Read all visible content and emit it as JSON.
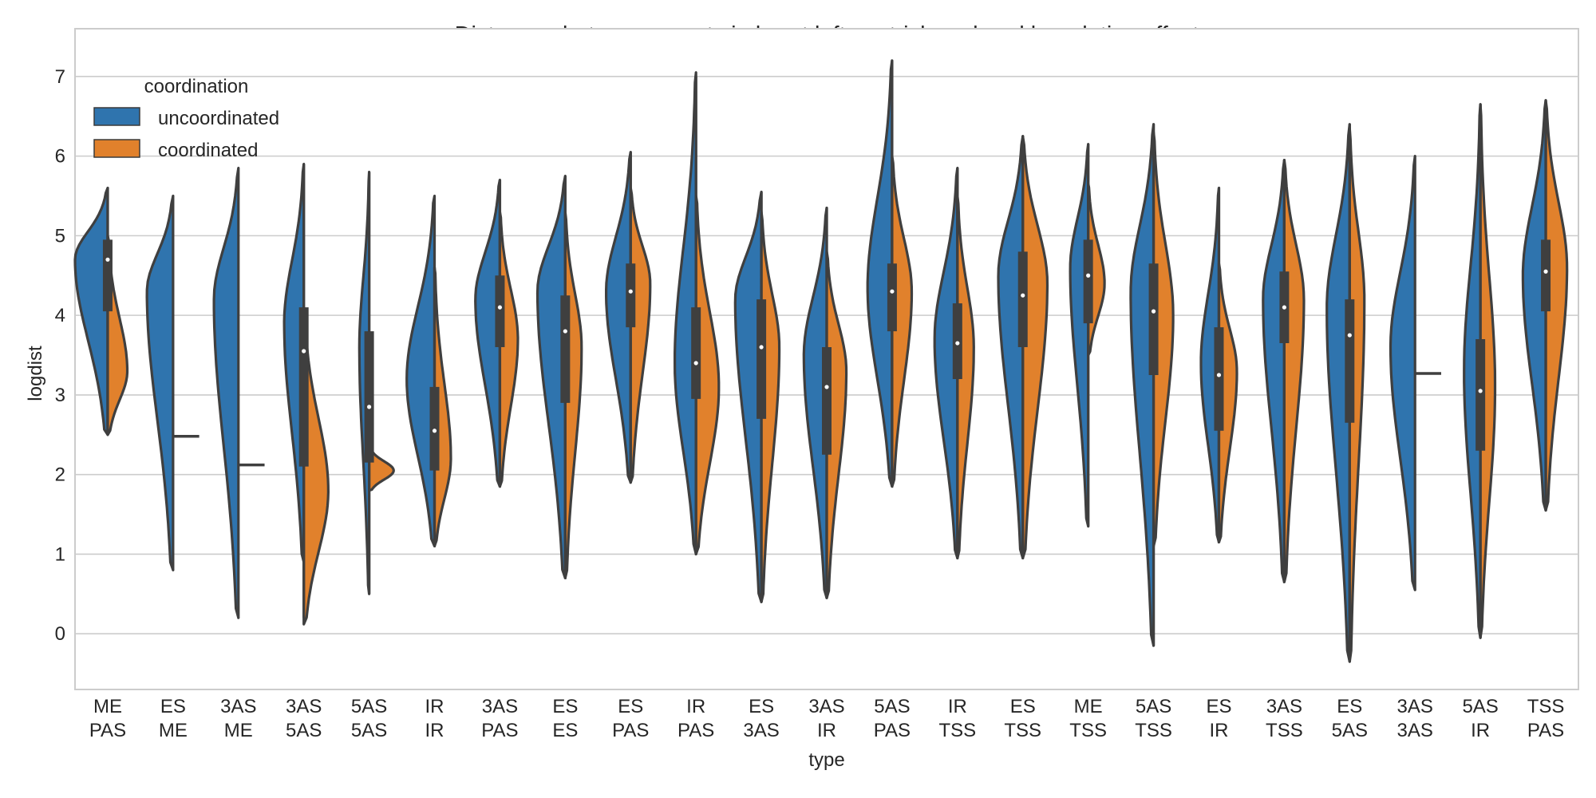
{
  "chart_data": {
    "type": "violin",
    "title": "Distances between events in heart left ventricle ordered by relative effect",
    "xlabel": "type",
    "ylabel": "logdist",
    "ylim": [
      -0.7,
      7.6
    ],
    "yticks": [
      "0",
      "1",
      "2",
      "3",
      "4",
      "5",
      "6",
      "7"
    ],
    "grid": true,
    "legend": {
      "title": "coordination",
      "placement": "upper-left",
      "entries": [
        {
          "label": "uncoordinated",
          "color": "#2f74ae"
        },
        {
          "label": "coordinated",
          "color": "#e1812c"
        }
      ]
    },
    "series_colors": {
      "uncoordinated": "#2f74ae",
      "coordinated": "#e1812c"
    },
    "categories": [
      {
        "line1": "ME",
        "line2": "PAS",
        "unc": {
          "min": 2.5,
          "max": 5.6,
          "peak": 4.7,
          "w": 1.0
        },
        "coo": {
          "min": 2.5,
          "max": 5.0,
          "peak": 3.3,
          "w": 0.6
        },
        "box": {
          "q1": 4.05,
          "median": 4.7,
          "q3": 4.95,
          "lo": 2.5,
          "hi": 5.6
        }
      },
      {
        "line1": "ES",
        "line2": "ME",
        "unc": {
          "min": 0.8,
          "max": 5.5,
          "peak": 4.3,
          "w": 0.8
        },
        "coo": {
          "point": 2.48
        },
        "box": null
      },
      {
        "line1": "3AS",
        "line2": "ME",
        "unc": {
          "min": 0.2,
          "max": 5.85,
          "peak": 4.2,
          "w": 0.75
        },
        "coo": {
          "point": 2.12
        },
        "box": null
      },
      {
        "line1": "3AS",
        "line2": "5AS",
        "unc": {
          "min": 0.9,
          "max": 5.9,
          "peak": 3.9,
          "w": 0.6
        },
        "coo": {
          "min": 0.12,
          "max": 4.1,
          "peak": 1.8,
          "w": 0.75
        },
        "box": {
          "q1": 2.1,
          "median": 3.55,
          "q3": 4.1,
          "lo": 0.2,
          "hi": 5.9
        }
      },
      {
        "line1": "5AS",
        "line2": "5AS",
        "unc": {
          "min": 0.5,
          "max": 5.8,
          "peak": 3.6,
          "w": 0.3
        },
        "coo": {
          "min": 1.8,
          "max": 2.35,
          "peak": 2.05,
          "w": 0.75
        },
        "box": {
          "q1": 2.15,
          "median": 2.85,
          "q3": 3.8,
          "lo": 0.5,
          "hi": 5.8
        }
      },
      {
        "line1": "IR",
        "line2": "IR",
        "unc": {
          "min": 1.1,
          "max": 5.5,
          "peak": 3.2,
          "w": 0.85
        },
        "coo": {
          "min": 1.1,
          "max": 4.6,
          "peak": 2.2,
          "w": 0.5
        },
        "box": {
          "q1": 2.05,
          "median": 2.55,
          "q3": 3.1,
          "lo": 1.1,
          "hi": 4.6
        }
      },
      {
        "line1": "3AS",
        "line2": "PAS",
        "unc": {
          "min": 1.85,
          "max": 5.7,
          "peak": 4.2,
          "w": 0.75
        },
        "coo": {
          "min": 1.85,
          "max": 5.3,
          "peak": 3.7,
          "w": 0.55
        },
        "box": {
          "q1": 3.6,
          "median": 4.1,
          "q3": 4.5,
          "lo": 1.85,
          "hi": 5.7
        }
      },
      {
        "line1": "ES",
        "line2": "ES",
        "unc": {
          "min": 0.7,
          "max": 5.75,
          "peak": 4.3,
          "w": 0.85
        },
        "coo": {
          "min": 0.7,
          "max": 5.3,
          "peak": 3.6,
          "w": 0.5
        },
        "box": {
          "q1": 2.9,
          "median": 3.8,
          "q3": 4.25,
          "lo": 0.7,
          "hi": 5.75
        }
      },
      {
        "line1": "ES",
        "line2": "PAS",
        "unc": {
          "min": 1.9,
          "max": 6.05,
          "peak": 4.3,
          "w": 0.75
        },
        "coo": {
          "min": 1.9,
          "max": 5.6,
          "peak": 4.4,
          "w": 0.6
        },
        "box": {
          "q1": 3.85,
          "median": 4.3,
          "q3": 4.65,
          "lo": 1.9,
          "hi": 6.05
        }
      },
      {
        "line1": "IR",
        "line2": "PAS",
        "unc": {
          "min": 1.0,
          "max": 7.05,
          "peak": 3.4,
          "w": 0.65
        },
        "coo": {
          "min": 1.0,
          "max": 5.5,
          "peak": 3.1,
          "w": 0.7
        },
        "box": {
          "q1": 2.95,
          "median": 3.4,
          "q3": 4.1,
          "lo": 1.0,
          "hi": 7.0
        }
      },
      {
        "line1": "ES",
        "line2": "3AS",
        "unc": {
          "min": 0.4,
          "max": 5.55,
          "peak": 4.2,
          "w": 0.8
        },
        "coo": {
          "min": 0.4,
          "max": 5.3,
          "peak": 3.6,
          "w": 0.55
        },
        "box": {
          "q1": 2.7,
          "median": 3.6,
          "q3": 4.2,
          "lo": 0.4,
          "hi": 5.55
        }
      },
      {
        "line1": "3AS",
        "line2": "IR",
        "unc": {
          "min": 0.45,
          "max": 5.35,
          "peak": 3.5,
          "w": 0.7
        },
        "coo": {
          "min": 0.45,
          "max": 4.8,
          "peak": 3.3,
          "w": 0.6
        },
        "box": {
          "q1": 2.25,
          "median": 3.1,
          "q3": 3.6,
          "lo": 0.45,
          "hi": 5.35
        }
      },
      {
        "line1": "5AS",
        "line2": "PAS",
        "unc": {
          "min": 1.85,
          "max": 7.2,
          "peak": 4.35,
          "w": 0.75
        },
        "coo": {
          "min": 1.85,
          "max": 6.0,
          "peak": 4.3,
          "w": 0.6
        },
        "box": {
          "q1": 3.8,
          "median": 4.3,
          "q3": 4.65,
          "lo": 1.85,
          "hi": 7.2
        }
      },
      {
        "line1": "IR",
        "line2": "TSS",
        "unc": {
          "min": 0.95,
          "max": 5.85,
          "peak": 3.7,
          "w": 0.7
        },
        "coo": {
          "min": 0.95,
          "max": 5.5,
          "peak": 3.6,
          "w": 0.5
        },
        "box": {
          "q1": 3.2,
          "median": 3.65,
          "q3": 4.15,
          "lo": 0.95,
          "hi": 5.85
        }
      },
      {
        "line1": "ES",
        "line2": "TSS",
        "unc": {
          "min": 0.95,
          "max": 6.25,
          "peak": 4.5,
          "w": 0.75
        },
        "coo": {
          "min": 0.95,
          "max": 6.25,
          "peak": 4.4,
          "w": 0.75
        },
        "box": {
          "q1": 3.6,
          "median": 4.25,
          "q3": 4.8,
          "lo": 0.95,
          "hi": 6.25
        }
      },
      {
        "line1": "ME",
        "line2": "TSS",
        "unc": {
          "min": 1.35,
          "max": 6.15,
          "peak": 4.6,
          "w": 0.55
        },
        "coo": {
          "min": 3.5,
          "max": 5.65,
          "peak": 4.4,
          "w": 0.5
        },
        "box": {
          "q1": 3.9,
          "median": 4.5,
          "q3": 4.95,
          "lo": 1.35,
          "hi": 6.15
        }
      },
      {
        "line1": "5AS",
        "line2": "TSS",
        "unc": {
          "min": -0.15,
          "max": 6.4,
          "peak": 4.3,
          "w": 0.7
        },
        "coo": {
          "min": 1.1,
          "max": 6.3,
          "peak": 4.0,
          "w": 0.6
        },
        "box": {
          "q1": 3.25,
          "median": 4.05,
          "q3": 4.65,
          "lo": -0.15,
          "hi": 6.4
        }
      },
      {
        "line1": "ES",
        "line2": "IR",
        "unc": {
          "min": 1.15,
          "max": 5.6,
          "peak": 3.4,
          "w": 0.55
        },
        "coo": {
          "min": 1.15,
          "max": 4.65,
          "peak": 3.3,
          "w": 0.55
        },
        "box": {
          "q1": 2.55,
          "median": 3.25,
          "q3": 3.85,
          "lo": 1.15,
          "hi": 5.6
        }
      },
      {
        "line1": "3AS",
        "line2": "TSS",
        "unc": {
          "min": 0.65,
          "max": 5.95,
          "peak": 4.2,
          "w": 0.65
        },
        "coo": {
          "min": 0.65,
          "max": 5.95,
          "peak": 4.2,
          "w": 0.6
        },
        "box": {
          "q1": 3.65,
          "median": 4.1,
          "q3": 4.55,
          "lo": 0.65,
          "hi": 5.95
        }
      },
      {
        "line1": "ES",
        "line2": "5AS",
        "unc": {
          "min": -0.35,
          "max": 6.4,
          "peak": 4.1,
          "w": 0.7
        },
        "coo": {
          "min": -0.35,
          "max": 6.35,
          "peak": 4.2,
          "w": 0.45
        },
        "box": {
          "q1": 2.65,
          "median": 3.75,
          "q3": 4.2,
          "lo": -0.35,
          "hi": 6.4
        }
      },
      {
        "line1": "3AS",
        "line2": "3AS",
        "unc": {
          "min": 0.55,
          "max": 6.0,
          "peak": 3.6,
          "w": 0.75
        },
        "coo": {
          "point": 3.27
        },
        "box": null
      },
      {
        "line1": "5AS",
        "line2": "IR",
        "unc": {
          "min": -0.05,
          "max": 6.65,
          "peak": 3.3,
          "w": 0.5
        },
        "coo": {
          "min": -0.05,
          "max": 6.65,
          "peak": 3.1,
          "w": 0.45
        },
        "box": {
          "q1": 2.3,
          "median": 3.05,
          "q3": 3.7,
          "lo": -0.05,
          "hi": 6.65
        }
      },
      {
        "line1": "TSS",
        "line2": "PAS",
        "unc": {
          "min": 1.55,
          "max": 6.7,
          "peak": 4.5,
          "w": 0.7
        },
        "coo": {
          "min": 1.55,
          "max": 6.7,
          "peak": 4.6,
          "w": 0.65
        },
        "box": {
          "q1": 4.05,
          "median": 4.55,
          "q3": 4.95,
          "lo": 1.55,
          "hi": 6.7
        }
      }
    ]
  }
}
